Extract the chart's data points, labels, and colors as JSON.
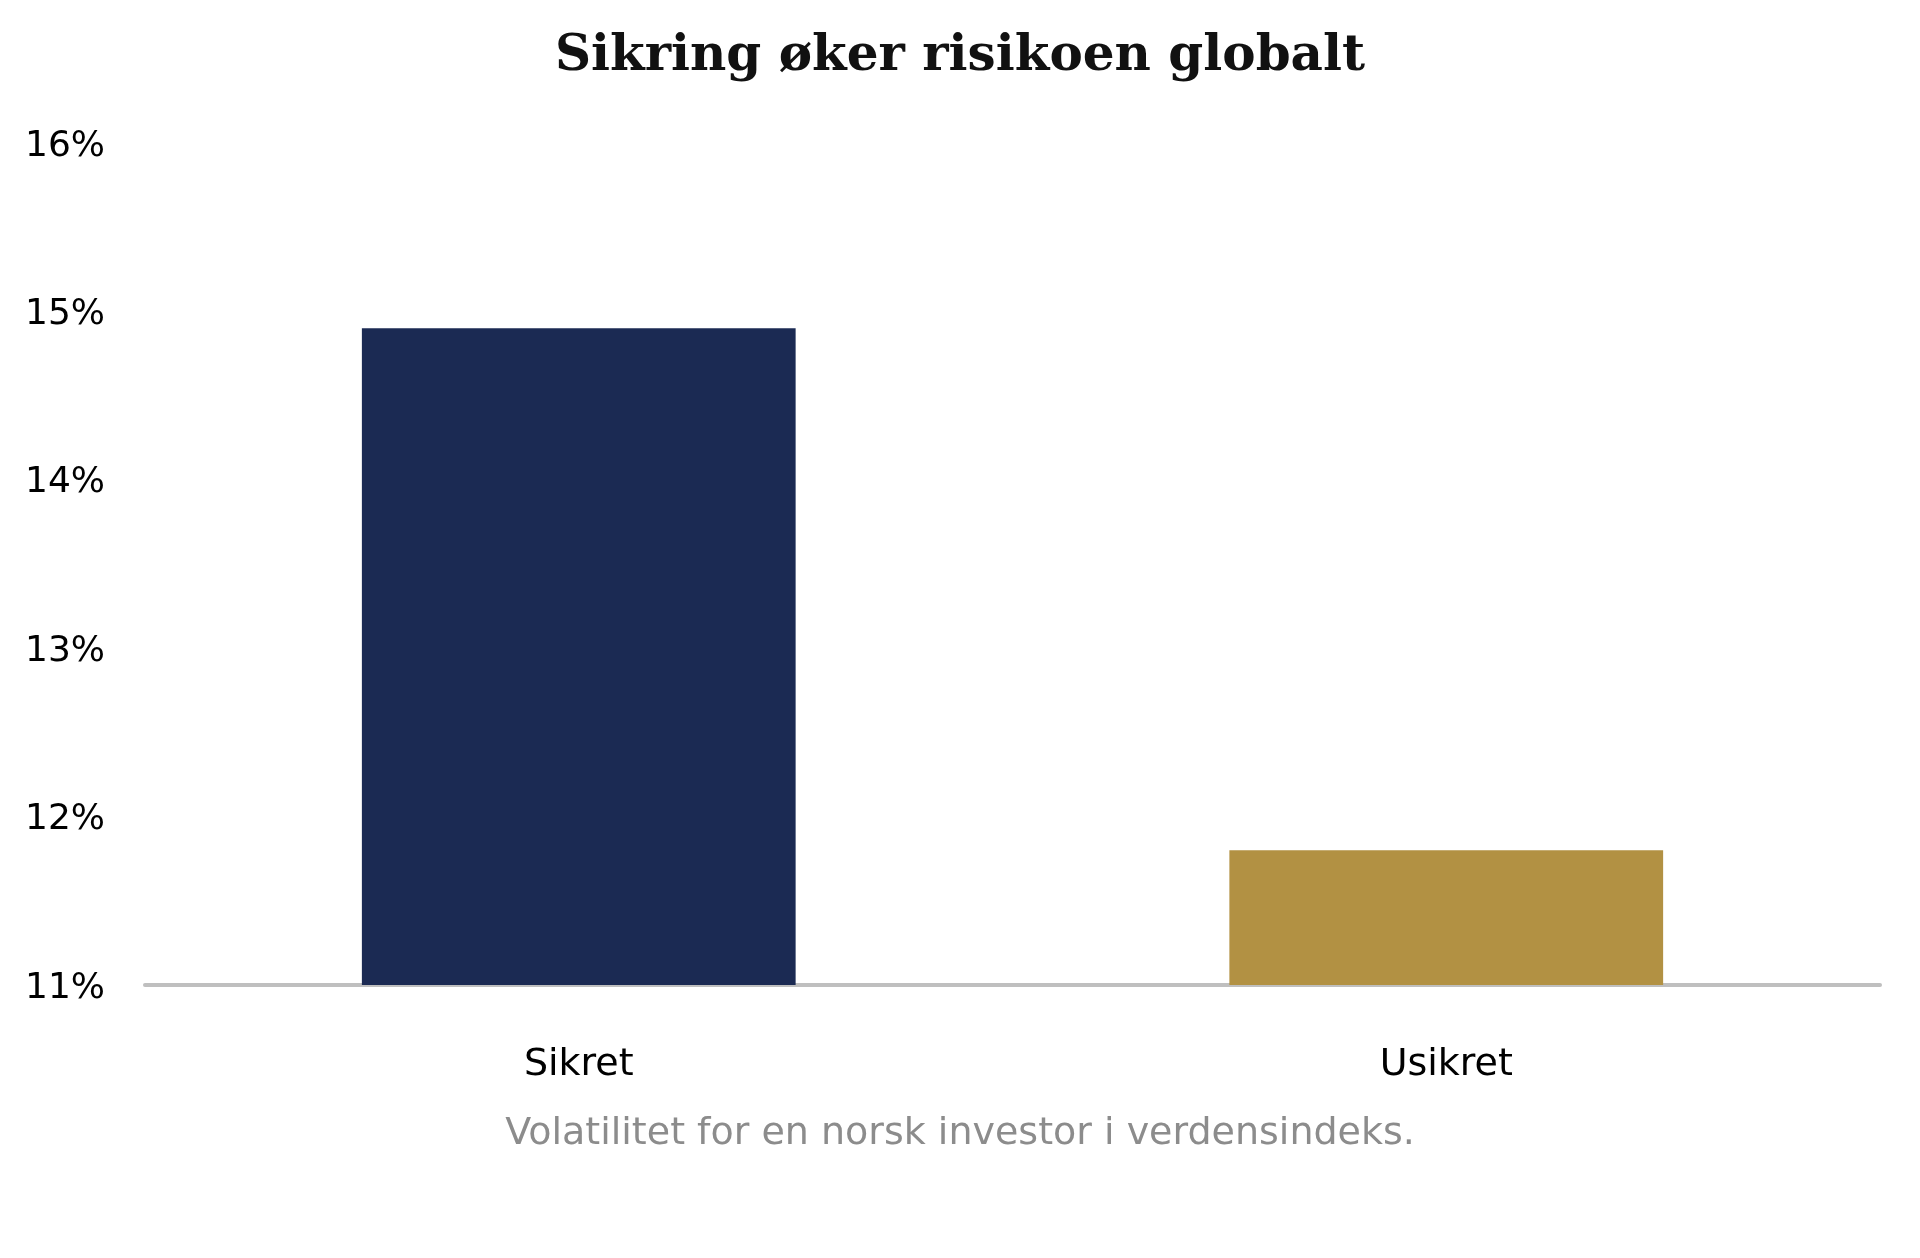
{
  "chart_data": {
    "type": "bar",
    "title": "Sikring øker risikoen globalt",
    "categories": [
      "Sikret",
      "Usikret"
    ],
    "values": [
      14.9,
      11.8
    ],
    "colors": [
      "#1b2a53",
      "#b29143"
    ],
    "ylim": [
      11,
      16
    ],
    "yticks": [
      {
        "value": 11,
        "label": "11%"
      },
      {
        "value": 12,
        "label": "12%"
      },
      {
        "value": 13,
        "label": "13%"
      },
      {
        "value": 14,
        "label": "14%"
      },
      {
        "value": 15,
        "label": "15%"
      },
      {
        "value": 16,
        "label": "16%"
      }
    ],
    "grid": false,
    "annotations": [
      "Volatilitet for en norsk investor i verdensindeks."
    ]
  }
}
